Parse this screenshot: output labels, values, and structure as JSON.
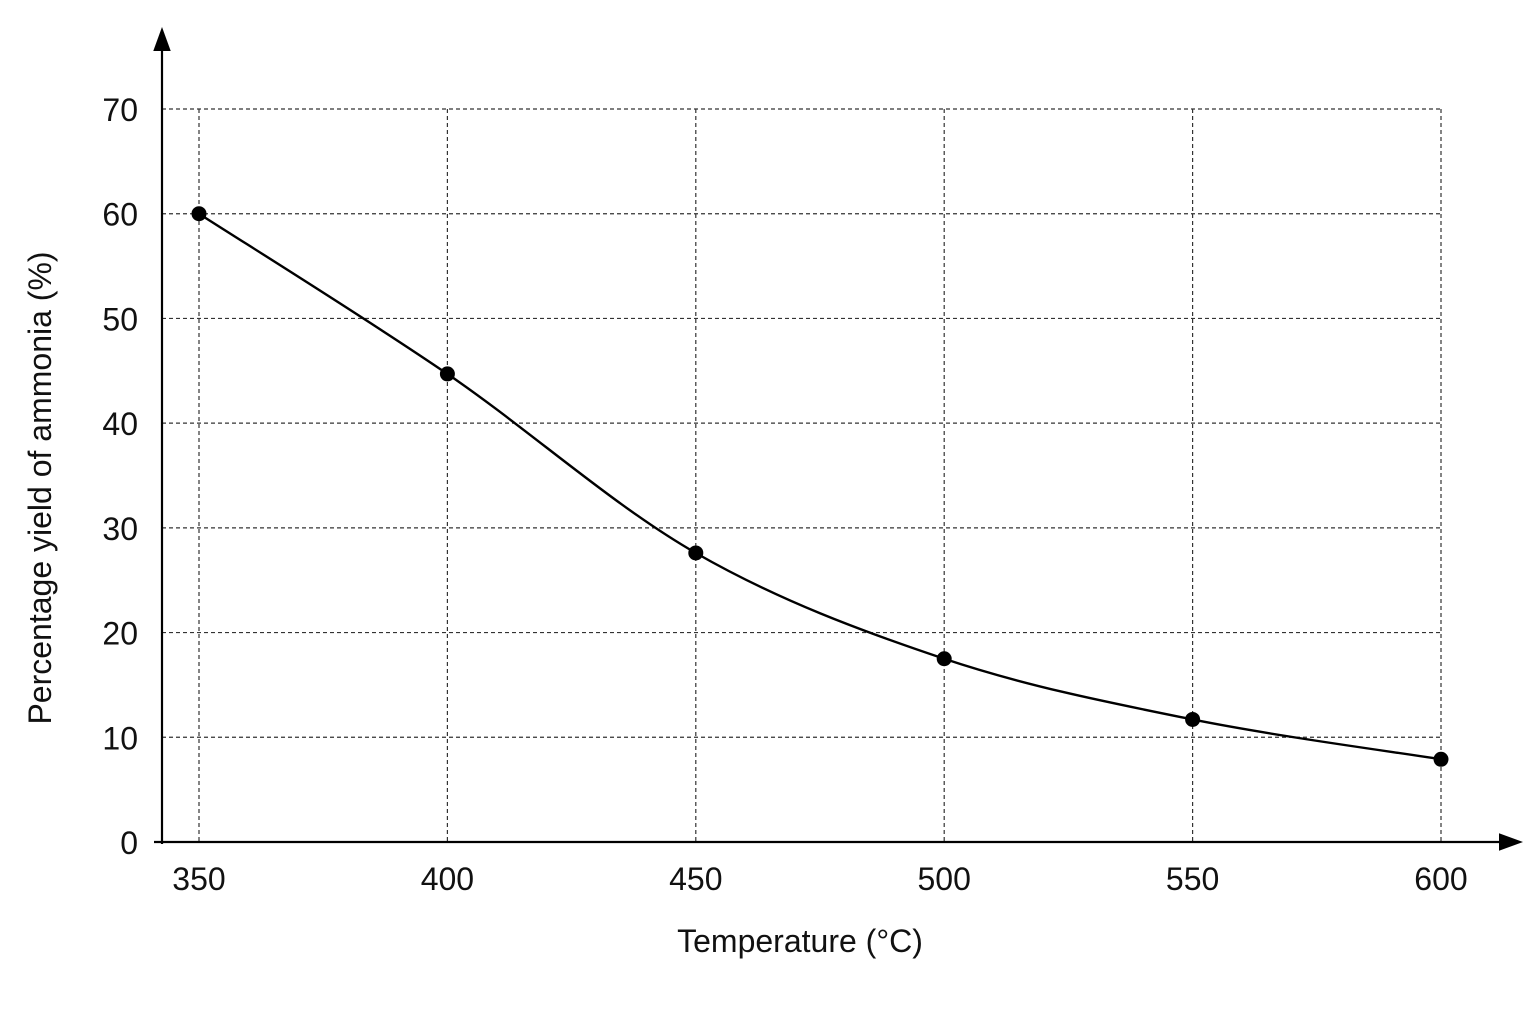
{
  "chart_data": {
    "type": "line",
    "xlabel": "Temperature (°C)",
    "ylabel": "Percentage yield of ammonia (%)",
    "x": [
      350,
      400,
      450,
      500,
      550,
      600
    ],
    "series": [
      {
        "values": [
          60,
          44.7,
          27.6,
          17.5,
          11.7,
          7.9
        ]
      }
    ],
    "x_ticks": [
      "350",
      "400",
      "450",
      "500",
      "550",
      "600"
    ],
    "y_ticks": [
      "0",
      "10",
      "20",
      "30",
      "40",
      "50",
      "60",
      "70"
    ],
    "xlim": [
      350,
      600
    ],
    "ylim": [
      0,
      70
    ],
    "grid": true,
    "markers": "filled-circle",
    "line_style": "smooth-solid",
    "colors": {
      "line": "#000000",
      "marker": "#000000",
      "grid": "#333333",
      "axis": "#000000"
    }
  }
}
